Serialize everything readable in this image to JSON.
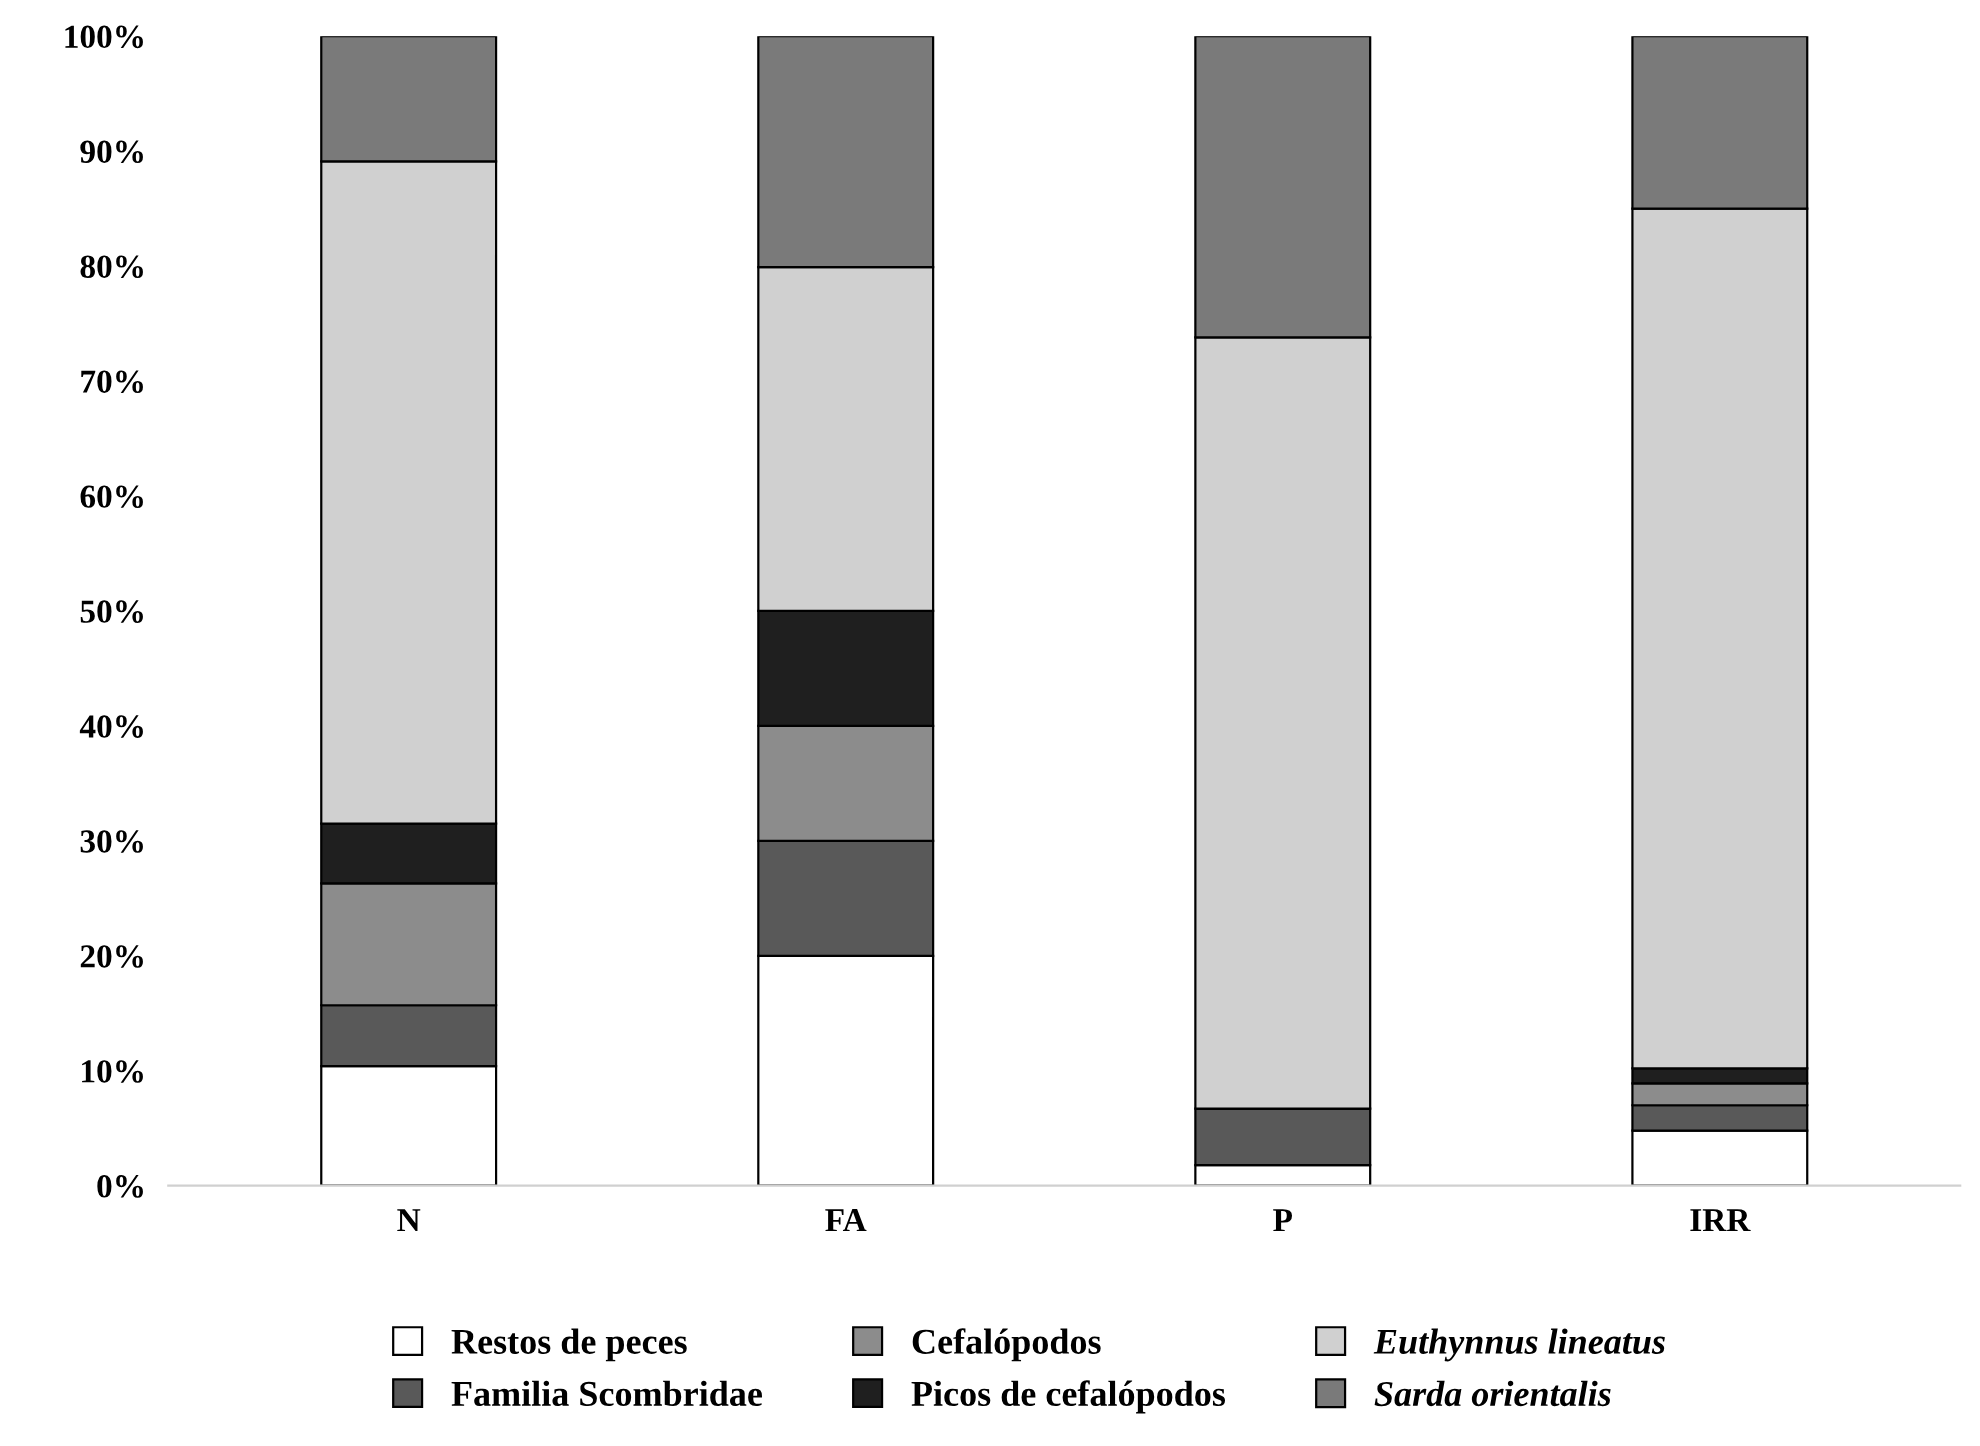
{
  "chart_data": {
    "type": "bar",
    "stacked": true,
    "categories": [
      "N",
      "FA",
      "P",
      "IRR"
    ],
    "series": [
      {
        "name": "Restos de peces",
        "color": "#ffffff",
        "values": [
          10.4,
          20,
          1.8,
          4.8
        ]
      },
      {
        "name": "Familia Scombridae",
        "color": "#595959",
        "values": [
          5.3,
          10,
          4.9,
          2.2
        ]
      },
      {
        "name": "Cefalópodos",
        "color": "#8c8c8c",
        "values": [
          10.6,
          10,
          0,
          1.9
        ]
      },
      {
        "name": "Picos de cefalópodos",
        "color": "#1f1f1f",
        "values": [
          5.2,
          10,
          0,
          1.3
        ]
      },
      {
        "name": "Euthynnus lineatus",
        "color": "#d0d0d0",
        "values": [
          57.6,
          29.9,
          67.1,
          74.8
        ]
      },
      {
        "name": "Sarda orientalis",
        "color": "#7a7a7a",
        "values": [
          10.9,
          20.1,
          26.2,
          15
        ]
      }
    ],
    "ylim": [
      0,
      100
    ],
    "yticks": [
      {
        "value": 0,
        "label": "0%"
      },
      {
        "value": 10,
        "label": "10%"
      },
      {
        "value": 20,
        "label": "20%"
      },
      {
        "value": 30,
        "label": "30%"
      },
      {
        "value": 40,
        "label": "40%"
      },
      {
        "value": 50,
        "label": "50%"
      },
      {
        "value": 60,
        "label": "60%"
      },
      {
        "value": 70,
        "label": "70%"
      },
      {
        "value": 80,
        "label": "80%"
      },
      {
        "value": 90,
        "label": "90%"
      },
      {
        "value": 100,
        "label": "100%"
      }
    ],
    "grid": false,
    "legend": "bottom"
  }
}
